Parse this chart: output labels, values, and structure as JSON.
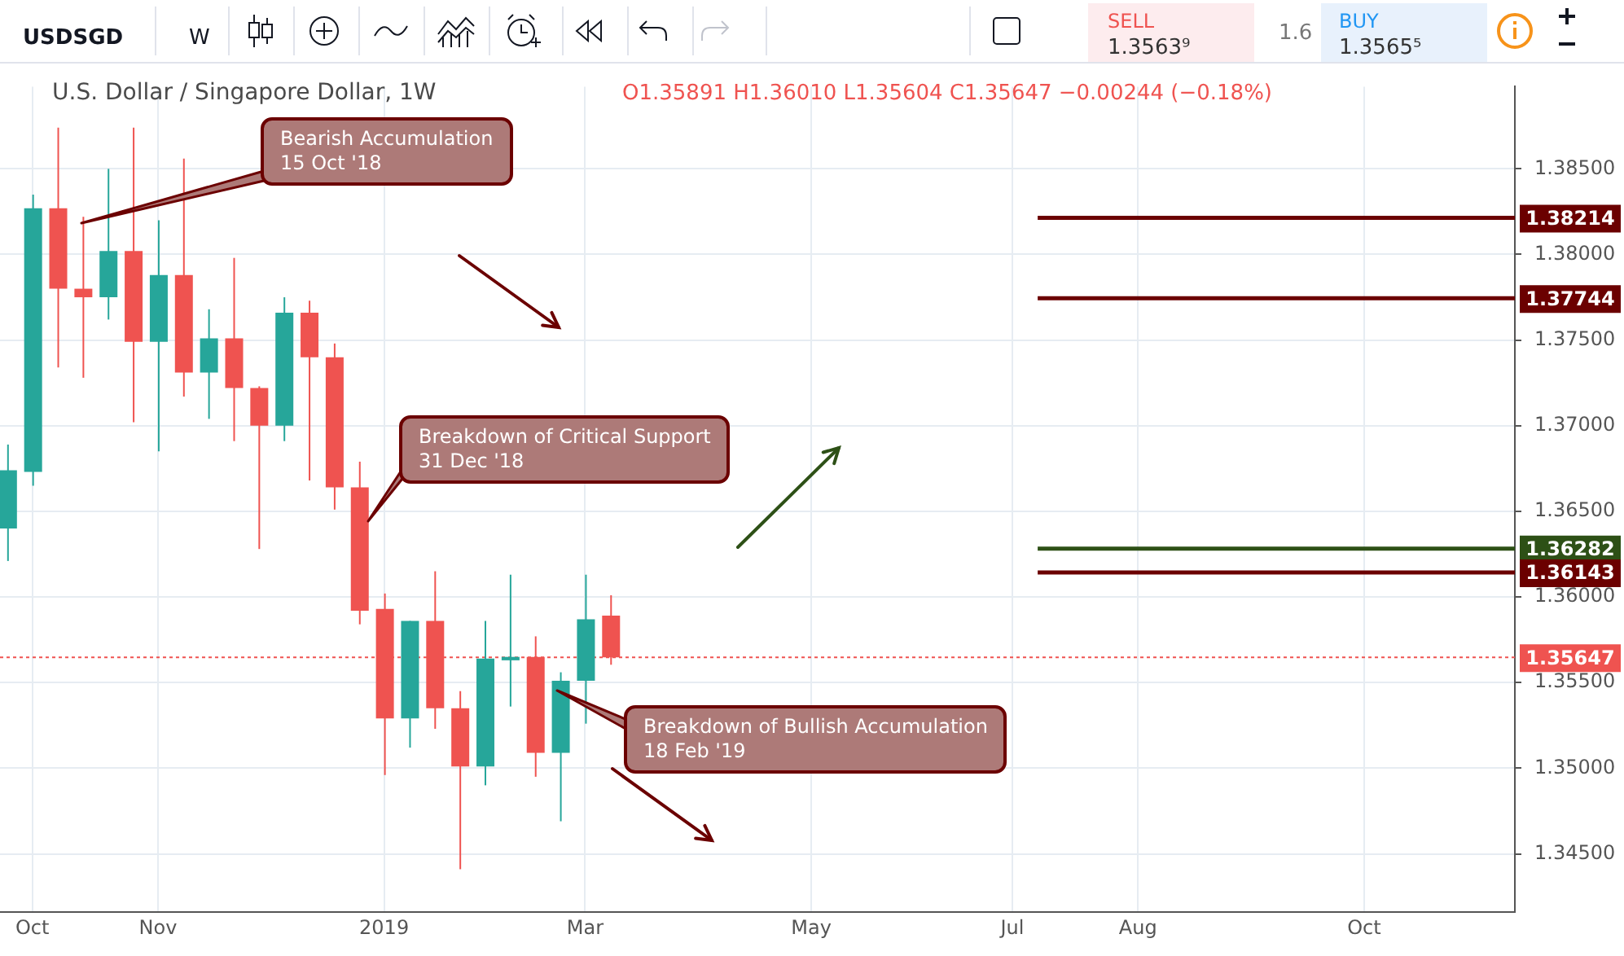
{
  "chart_data": {
    "type": "candlestick",
    "title": "U.S. Dollar / Singapore Dollar, 1W",
    "subtitle": "O1.35891 H1.36010 L1.35604 C1.35647 −0.00244 (−0.18%)",
    "x": [
      "2018-09-24",
      "2018-10-01",
      "2018-10-08",
      "2018-10-15",
      "2018-10-22",
      "2018-10-29",
      "2018-11-05",
      "2018-11-12",
      "2018-11-19",
      "2018-11-26",
      "2018-12-03",
      "2018-12-10",
      "2018-12-17",
      "2018-12-24",
      "2018-12-31",
      "2019-01-07",
      "2019-01-14",
      "2019-01-21",
      "2019-01-28",
      "2019-02-04",
      "2019-02-11",
      "2019-02-18",
      "2019-02-25",
      "2019-03-04",
      "2019-03-11"
    ],
    "ohlc": [
      [
        1.364,
        1.3689,
        1.3621,
        1.3674
      ],
      [
        1.3673,
        1.3835,
        1.3665,
        1.3827
      ],
      [
        1.3827,
        1.3874,
        1.3734,
        1.378
      ],
      [
        1.378,
        1.3822,
        1.3728,
        1.3775
      ],
      [
        1.3775,
        1.385,
        1.3762,
        1.3802
      ],
      [
        1.3802,
        1.3874,
        1.3702,
        1.3749
      ],
      [
        1.3749,
        1.382,
        1.3685,
        1.3788
      ],
      [
        1.3788,
        1.3856,
        1.3717,
        1.3731
      ],
      [
        1.3731,
        1.3768,
        1.3704,
        1.3751
      ],
      [
        1.3751,
        1.3798,
        1.3691,
        1.3722
      ],
      [
        1.3722,
        1.3723,
        1.3628,
        1.37
      ],
      [
        1.37,
        1.3775,
        1.3691,
        1.3766
      ],
      [
        1.3766,
        1.3773,
        1.3668,
        1.374
      ],
      [
        1.374,
        1.3748,
        1.3651,
        1.3664
      ],
      [
        1.3664,
        1.3679,
        1.3584,
        1.3592
      ],
      [
        1.3593,
        1.3602,
        1.3496,
        1.3529
      ],
      [
        1.3529,
        1.3586,
        1.3512,
        1.3586
      ],
      [
        1.3586,
        1.3615,
        1.3523,
        1.3535
      ],
      [
        1.3535,
        1.3545,
        1.3441,
        1.3501
      ],
      [
        1.3501,
        1.3586,
        1.349,
        1.3564
      ],
      [
        1.3563,
        1.3613,
        1.3536,
        1.3565
      ],
      [
        1.3565,
        1.3577,
        1.3495,
        1.3509
      ],
      [
        1.3509,
        1.3556,
        1.3469,
        1.3551
      ],
      [
        1.3551,
        1.3613,
        1.3526,
        1.3587
      ],
      [
        1.35891,
        1.3601,
        1.35604,
        1.35647
      ]
    ],
    "colors": [
      "#26a69a",
      "#26a69a",
      "#ef5350",
      "#ef5350",
      "#26a69a",
      "#ef5350",
      "#26a69a",
      "#ef5350",
      "#26a69a",
      "#ef5350",
      "#ef5350",
      "#26a69a",
      "#ef5350",
      "#ef5350",
      "#ef5350",
      "#ef5350",
      "#26a69a",
      "#ef5350",
      "#ef5350",
      "#26a69a",
      "#26a69a",
      "#ef5350",
      "#26a69a",
      "#26a69a",
      "#ef5350"
    ],
    "xlim": [
      "2018-09-22",
      "2019-11-18"
    ],
    "xticks": [
      {
        "value": "2018-10-01",
        "label": "Oct"
      },
      {
        "value": "2018-11-05",
        "label": "Nov"
      },
      {
        "value": "2019-01-07",
        "label": "2019"
      },
      {
        "value": "2019-03-04",
        "label": "Mar"
      },
      {
        "value": "2019-05-06",
        "label": "May"
      },
      {
        "value": "2019-07-01",
        "label": "Jul"
      },
      {
        "value": "2019-08-05",
        "label": "Aug"
      },
      {
        "value": "2019-10-07",
        "label": "Oct"
      }
    ],
    "ylim": [
      1.3416,
      1.3898
    ],
    "yticks": [
      {
        "value": 1.345,
        "label": "1.34500"
      },
      {
        "value": 1.35,
        "label": "1.35000"
      },
      {
        "value": 1.355,
        "label": "1.35500"
      },
      {
        "value": 1.36,
        "label": "1.36000"
      },
      {
        "value": 1.365,
        "label": "1.36500"
      },
      {
        "value": 1.37,
        "label": "1.37000"
      },
      {
        "value": 1.375,
        "label": "1.37500"
      },
      {
        "value": 1.38,
        "label": "1.38000"
      },
      {
        "value": 1.385,
        "label": "1.38500"
      }
    ],
    "ref_lines": [
      {
        "axis": "y",
        "value": 1.38214,
        "label": "1.38214",
        "color": "#6b0000"
      },
      {
        "axis": "y",
        "value": 1.37744,
        "label": "1.37744",
        "color": "#6b0000"
      },
      {
        "axis": "y",
        "value": 1.36282,
        "label": "1.36282",
        "color": "#2d5016"
      },
      {
        "axis": "y",
        "value": 1.36143,
        "label": "1.36143",
        "color": "#6b0000"
      },
      {
        "axis": "y",
        "value": 1.35647,
        "label": "1.35647",
        "color": "#ef5350",
        "line_style": "dotted"
      }
    ],
    "annotations": [
      "USDSGD",
      "W",
      "SELL",
      "1.3563⁹",
      "1.6",
      "BUY",
      "1.3565⁵",
      "Bearish Accumulation\n15 Oct '18",
      "Breakdown of Critical Support\n31 Dec '18",
      "Breakdown of Bullish Accumulation\n18 Feb '19"
    ],
    "grid": true,
    "legend": false
  }
}
